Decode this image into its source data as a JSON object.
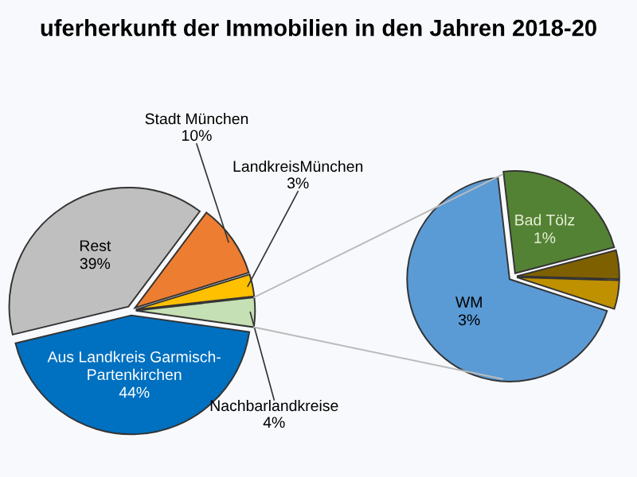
{
  "chart_data": [
    {
      "type": "pie",
      "title": "uferherkunft der Immobilien in den Jahren 2018-20",
      "categories": [
        "Nachbarlandkreise",
        "LandkreisMünchen",
        "Stadt München",
        "Rest",
        "Aus Landkreis Garmisch-Partenkirchen"
      ],
      "values": [
        4,
        3,
        10,
        39,
        44
      ],
      "value_labels": [
        "4%",
        "3%",
        "10%",
        "39%",
        "44%"
      ],
      "colors": [
        "#c5e0b4",
        "#ffc000",
        "#ed7d31",
        "#bfbfbf",
        "#0070c0"
      ]
    },
    {
      "type": "pie",
      "categories": [
        null,
        null,
        "Bad Tölz",
        "WM"
      ],
      "values": [
        0.2,
        0.2,
        1,
        3
      ],
      "value_labels": [
        null,
        null,
        "1%",
        "3%"
      ],
      "colors": [
        "#bf9000",
        "#7f6000",
        "#548235",
        "#5b9bd5"
      ]
    }
  ]
}
